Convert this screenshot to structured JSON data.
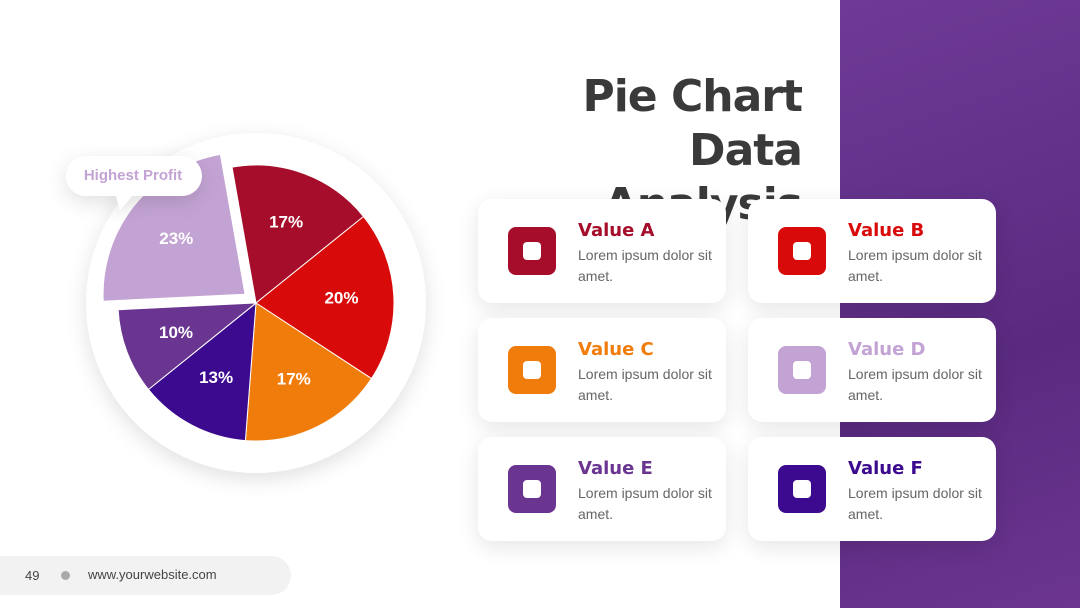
{
  "chart_data": {
    "type": "pie",
    "title": "Pie Chart Data Analysis",
    "categories": [
      "Value A",
      "Value B",
      "Value C",
      "Value F",
      "Value E",
      "Value D"
    ],
    "values": [
      17,
      20,
      17,
      13,
      10,
      23
    ],
    "value_labels": [
      "17%",
      "20%",
      "17%",
      "13%",
      "10%",
      "23%"
    ],
    "colors": [
      "#a50d2a",
      "#d90a0a",
      "#f07c0c",
      "#3b0a8f",
      "#6a3590",
      "#c3a3d3"
    ],
    "annotation": "Highest Profit"
  },
  "cards": [
    {
      "category": 0,
      "text": "Lorem ipsum dolor sit amet."
    },
    {
      "category": 1,
      "text": "Lorem ipsum dolor sit amet."
    },
    {
      "category": 2,
      "text": "Lorem ipsum dolor sit amet."
    },
    {
      "category": 5,
      "text": "Lorem ipsum dolor sit amet."
    },
    {
      "category": 4,
      "text": "Lorem ipsum dolor sit amet."
    },
    {
      "category": 3,
      "text": "Lorem ipsum dolor sit amet."
    }
  ],
  "footer": {
    "page": "49",
    "website": "www.yourwebsite.com"
  }
}
